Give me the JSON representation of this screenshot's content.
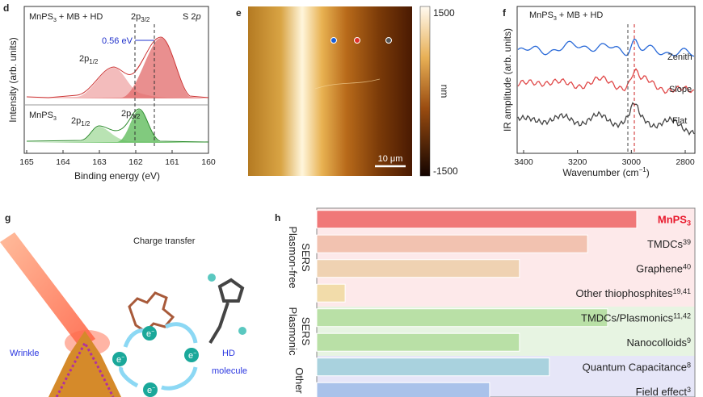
{
  "panels": {
    "d": {
      "letter": "d",
      "xlabel": "Binding energy (eV)",
      "ylabel": "Intensity (arb. units)",
      "xlim": [
        165,
        160
      ],
      "xticks": [
        165,
        164,
        163,
        162,
        161,
        160
      ],
      "top_sample": [
        "MnPS",
        "3",
        " + MB + HD"
      ],
      "top_peak_a": [
        "2p",
        "3/2"
      ],
      "core_level": [
        "S 2",
        "p"
      ],
      "shift": "0.56 eV",
      "top_peak_b": [
        "2p",
        "1/2"
      ],
      "bottom_sample": [
        "MnPS",
        "3"
      ],
      "bottom_peak_b": [
        "2p",
        "1/2"
      ],
      "bottom_peak_a": [
        "2p",
        "3/2"
      ]
    },
    "e": {
      "letter": "e",
      "colorbar_max": "1500",
      "colorbar_min": "-1500",
      "unit": "nm",
      "scale_bar": "10 μm"
    },
    "f": {
      "letter": "f",
      "xlabel": [
        "Wavenumber (cm",
        "−1",
        ")"
      ],
      "ylabel": "IR amplitude (arb. units)",
      "xticks": [
        3400,
        3200,
        3000,
        2800
      ],
      "sample": [
        "MnPS",
        "3",
        " + MB + HD"
      ],
      "traces": [
        "Zenith",
        "Slope",
        "Flat"
      ]
    },
    "g": {
      "letter": "g",
      "title": "Charge transfer",
      "left_label": "Wrinkle",
      "right_label": [
        "HD",
        "molecule"
      ],
      "electron": [
        "e",
        "−"
      ]
    },
    "h": {
      "letter": "h",
      "groups": [
        {
          "label": [
            "Plasmon-free",
            "SERS"
          ],
          "rows": 4
        },
        {
          "label": [
            "Plasmonic",
            "SERS"
          ],
          "rows": 2
        },
        {
          "label": [
            "Other"
          ],
          "rows": 2
        }
      ],
      "categories": [
        {
          "text": "MnPS",
          "sub": "3"
        },
        {
          "text": "TMDCs",
          "sup": "39"
        },
        {
          "text": "Graphene",
          "sup": "40"
        },
        {
          "text": "Other thiophosphites",
          "sup": "19,41"
        },
        {
          "text": "TMDCs/Plasmonics",
          "sup": "11,42"
        },
        {
          "text": "Nanocolloids",
          "sup": "9"
        },
        {
          "text": "Quantum Capacitance",
          "sup": "8"
        },
        {
          "text": "Field effect",
          "sup": "3"
        }
      ],
      "values": [
        84.6,
        71.6,
        53.6,
        7.5,
        76.9,
        53.6,
        61.5,
        45.7
      ],
      "xlim": [
        0,
        100
      ],
      "colors": [
        "#f07878",
        "#f2c2b0",
        "#efd2b2",
        "#f2dcaa",
        "#b9e0a6",
        "#b9e0a6",
        "#a9d2de",
        "#a9c2ea"
      ],
      "group_colors": [
        "#fde9ea",
        "#e7f4e2",
        "#e6e6f8"
      ],
      "highlight_color": "#e8192c"
    }
  }
}
